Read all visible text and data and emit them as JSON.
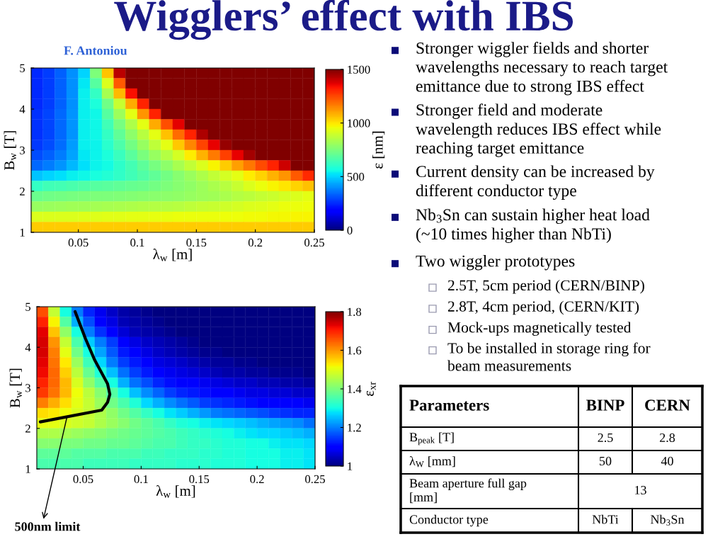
{
  "chart_data": [
    {
      "type": "heatmap",
      "xlabel": "λ$_{w}$ [m]",
      "ylabel": "B$_{w}$ [T]",
      "clabel": "ε [nm]",
      "cells": [
        [
          250,
          280,
          330,
          400,
          500,
          750,
          1050,
          1420,
          1500,
          1500,
          1500,
          1500,
          1500,
          1500,
          1500,
          1500,
          1500,
          1500,
          1500,
          1500,
          1500,
          1500,
          1500,
          1500
        ],
        [
          250,
          280,
          330,
          400,
          530,
          680,
          920,
          1220,
          1500,
          1500,
          1500,
          1500,
          1500,
          1500,
          1500,
          1500,
          1500,
          1500,
          1500,
          1500,
          1500,
          1500,
          1500,
          1500
        ],
        [
          250,
          280,
          330,
          400,
          540,
          620,
          830,
          1070,
          1340,
          1500,
          1500,
          1500,
          1500,
          1500,
          1500,
          1500,
          1500,
          1500,
          1500,
          1500,
          1500,
          1500,
          1500,
          1500
        ],
        [
          250,
          280,
          330,
          400,
          540,
          575,
          730,
          890,
          1090,
          1310,
          1500,
          1500,
          1500,
          1500,
          1500,
          1500,
          1500,
          1500,
          1500,
          1500,
          1500,
          1500,
          1500,
          1500
        ],
        [
          260,
          290,
          340,
          410,
          540,
          555,
          680,
          810,
          940,
          1125,
          1310,
          1500,
          1500,
          1500,
          1500,
          1500,
          1500,
          1500,
          1500,
          1500,
          1500,
          1500,
          1500,
          1500
        ],
        [
          260,
          290,
          340,
          410,
          540,
          555,
          640,
          740,
          840,
          940,
          1090,
          1240,
          1370,
          1500,
          1500,
          1500,
          1500,
          1500,
          1500,
          1500,
          1500,
          1500,
          1500,
          1500
        ],
        [
          260,
          290,
          340,
          410,
          540,
          555,
          620,
          700,
          780,
          860,
          940,
          1060,
          1190,
          1310,
          1440,
          1500,
          1500,
          1500,
          1500,
          1500,
          1500,
          1500,
          1500,
          1500
        ],
        [
          270,
          300,
          350,
          420,
          540,
          550,
          600,
          665,
          735,
          800,
          870,
          940,
          1045,
          1150,
          1255,
          1360,
          1470,
          1500,
          1500,
          1500,
          1500,
          1500,
          1500,
          1500
        ],
        [
          300,
          330,
          370,
          430,
          530,
          550,
          580,
          630,
          690,
          745,
          800,
          855,
          910,
          985,
          1080,
          1170,
          1265,
          1360,
          1450,
          1500,
          1500,
          1500,
          1500,
          1500
        ],
        [
          340,
          370,
          410,
          460,
          520,
          550,
          560,
          605,
          650,
          695,
          740,
          785,
          830,
          875,
          920,
          975,
          1040,
          1110,
          1175,
          1245,
          1310,
          1400,
          1500,
          1500
        ],
        [
          480,
          500,
          520,
          540,
          555,
          570,
          590,
          615,
          640,
          670,
          700,
          735,
          770,
          805,
          840,
          875,
          910,
          940,
          985,
          1030,
          1080,
          1125,
          1220,
          1300
        ],
        [
          620,
          640,
          650,
          660,
          670,
          680,
          690,
          700,
          710,
          720,
          735,
          750,
          770,
          790,
          810,
          835,
          860,
          890,
          920,
          950,
          975,
          1000,
          1030,
          1060
        ],
        [
          720,
          730,
          735,
          740,
          745,
          750,
          755,
          760,
          765,
          770,
          775,
          780,
          790,
          800,
          810,
          820,
          835,
          850,
          865,
          880,
          895,
          910,
          925,
          940
        ],
        [
          800,
          805,
          810,
          815,
          820,
          825,
          830,
          835,
          840,
          845,
          850,
          855,
          860,
          870,
          880,
          890,
          900,
          910,
          920,
          930,
          940,
          950,
          955,
          960
        ],
        [
          920,
          920,
          925,
          925,
          930,
          930,
          935,
          935,
          940,
          940,
          945,
          945,
          950,
          950,
          955,
          955,
          960,
          960,
          965,
          965,
          970,
          970,
          975,
          975
        ],
        [
          1040,
          1040,
          1040,
          1040,
          1040,
          1040,
          1040,
          1040,
          1040,
          1040,
          1040,
          1040,
          1040,
          1040,
          1040,
          1040,
          1040,
          1040,
          1040,
          1040,
          1040,
          1040,
          1040,
          1040
        ]
      ],
      "clim": [
        0,
        1500
      ],
      "cticks": [
        0,
        500,
        1000,
        1500
      ],
      "xlim": [
        0.01,
        0.25
      ],
      "xticks": [
        0.05,
        0.1,
        0.15,
        0.2,
        0.25
      ],
      "ylim": [
        1,
        5
      ],
      "yticks": [
        1,
        2,
        3,
        4,
        5
      ]
    },
    {
      "type": "heatmap",
      "xlabel": "λ$_{w}$ [m]",
      "ylabel": "B$_{w}$ [T]",
      "clabel": "ε$_{xr}$",
      "cells": [
        [
          1.66,
          1.47,
          1.3,
          1.2,
          1.13,
          1.08,
          1.05,
          1.03,
          1.02,
          1.01,
          1.0,
          1.0,
          1.0,
          1.0,
          1.0,
          1.0,
          1.0,
          1.0,
          1.0,
          1.0,
          1.0,
          1.0,
          1.0,
          1.0
        ],
        [
          1.7,
          1.52,
          1.36,
          1.24,
          1.16,
          1.1,
          1.07,
          1.04,
          1.03,
          1.02,
          1.01,
          1.0,
          1.0,
          1.0,
          1.0,
          1.0,
          1.0,
          1.0,
          1.0,
          1.0,
          1.0,
          1.0,
          1.0,
          1.0
        ],
        [
          1.73,
          1.56,
          1.42,
          1.3,
          1.2,
          1.14,
          1.09,
          1.06,
          1.04,
          1.03,
          1.02,
          1.01,
          1.0,
          1.0,
          1.0,
          1.0,
          1.0,
          1.0,
          1.0,
          1.0,
          1.0,
          1.0,
          1.0,
          1.0
        ],
        [
          1.74,
          1.6,
          1.47,
          1.35,
          1.26,
          1.2,
          1.15,
          1.1,
          1.07,
          1.05,
          1.04,
          1.03,
          1.02,
          1.01,
          1.0,
          1.0,
          1.0,
          1.0,
          1.0,
          1.0,
          1.0,
          1.0,
          1.0,
          1.0
        ],
        [
          1.74,
          1.62,
          1.5,
          1.39,
          1.3,
          1.23,
          1.17,
          1.12,
          1.09,
          1.07,
          1.05,
          1.04,
          1.03,
          1.02,
          1.01,
          1.01,
          1.0,
          1.0,
          1.0,
          1.0,
          1.0,
          1.0,
          1.0,
          1.0
        ],
        [
          1.73,
          1.63,
          1.53,
          1.43,
          1.34,
          1.27,
          1.2,
          1.15,
          1.12,
          1.09,
          1.07,
          1.06,
          1.05,
          1.04,
          1.03,
          1.02,
          1.02,
          1.01,
          1.01,
          1.0,
          1.0,
          1.0,
          1.0,
          1.0
        ],
        [
          1.72,
          1.64,
          1.55,
          1.46,
          1.38,
          1.31,
          1.25,
          1.19,
          1.15,
          1.12,
          1.1,
          1.08,
          1.07,
          1.06,
          1.05,
          1.04,
          1.03,
          1.03,
          1.02,
          1.02,
          1.01,
          1.01,
          1.01,
          1.0
        ],
        [
          1.7,
          1.64,
          1.57,
          1.49,
          1.42,
          1.36,
          1.3,
          1.24,
          1.19,
          1.16,
          1.13,
          1.11,
          1.1,
          1.09,
          1.08,
          1.07,
          1.06,
          1.05,
          1.05,
          1.04,
          1.04,
          1.03,
          1.03,
          1.02
        ],
        [
          1.68,
          1.63,
          1.57,
          1.51,
          1.46,
          1.41,
          1.36,
          1.3,
          1.25,
          1.21,
          1.18,
          1.15,
          1.13,
          1.12,
          1.11,
          1.1,
          1.09,
          1.08,
          1.07,
          1.07,
          1.06,
          1.06,
          1.05,
          1.05
        ],
        [
          1.62,
          1.58,
          1.54,
          1.5,
          1.47,
          1.43,
          1.39,
          1.35,
          1.31,
          1.27,
          1.24,
          1.21,
          1.19,
          1.17,
          1.15,
          1.14,
          1.13,
          1.12,
          1.11,
          1.1,
          1.1,
          1.09,
          1.09,
          1.08
        ],
        [
          1.54,
          1.53,
          1.51,
          1.49,
          1.47,
          1.45,
          1.42,
          1.39,
          1.36,
          1.33,
          1.3,
          1.28,
          1.26,
          1.24,
          1.22,
          1.2,
          1.19,
          1.18,
          1.17,
          1.16,
          1.15,
          1.14,
          1.13,
          1.13
        ],
        [
          1.5,
          1.5,
          1.49,
          1.48,
          1.47,
          1.45,
          1.43,
          1.41,
          1.39,
          1.37,
          1.35,
          1.33,
          1.31,
          1.3,
          1.29,
          1.28,
          1.27,
          1.26,
          1.25,
          1.24,
          1.23,
          1.22,
          1.21,
          1.19
        ],
        [
          1.45,
          1.45,
          1.44,
          1.43,
          1.42,
          1.41,
          1.4,
          1.39,
          1.38,
          1.37,
          1.36,
          1.35,
          1.34,
          1.33,
          1.32,
          1.31,
          1.3,
          1.29,
          1.28,
          1.27,
          1.27,
          1.26,
          1.25,
          1.24
        ],
        [
          1.41,
          1.41,
          1.4,
          1.4,
          1.39,
          1.39,
          1.38,
          1.38,
          1.37,
          1.36,
          1.35,
          1.35,
          1.34,
          1.33,
          1.33,
          1.32,
          1.31,
          1.31,
          1.3,
          1.3,
          1.29,
          1.28,
          1.28,
          1.27
        ],
        [
          1.37,
          1.37,
          1.37,
          1.36,
          1.36,
          1.36,
          1.35,
          1.35,
          1.35,
          1.34,
          1.34,
          1.33,
          1.33,
          1.33,
          1.32,
          1.32,
          1.31,
          1.31,
          1.3,
          1.3,
          1.3,
          1.29,
          1.29,
          1.28
        ],
        [
          1.35,
          1.35,
          1.35,
          1.35,
          1.34,
          1.34,
          1.34,
          1.34,
          1.33,
          1.33,
          1.33,
          1.33,
          1.32,
          1.32,
          1.32,
          1.31,
          1.31,
          1.31,
          1.3,
          1.3,
          1.3,
          1.29,
          1.29,
          1.28
        ]
      ],
      "clim": [
        1,
        1.8
      ],
      "cticks": [
        1,
        1.2,
        1.4,
        1.6,
        1.8
      ],
      "xlim": [
        0.01,
        0.25
      ],
      "xticks": [
        0.05,
        0.1,
        0.15,
        0.2,
        0.25
      ],
      "ylim": [
        1,
        5
      ],
      "yticks": [
        1,
        2,
        3,
        4,
        5
      ],
      "series": [
        {
          "type": "line",
          "color": "#000000",
          "x": [
            0.013,
            0.066,
            0.071,
            0.073,
            0.071,
            0.06,
            0.052,
            0.043
          ],
          "values": [
            2.16,
            2.45,
            2.64,
            2.84,
            3.1,
            3.68,
            4.21,
            4.88
          ]
        }
      ],
      "annotations": [
        {
          "text": "500nm limit",
          "x": 0.036,
          "y": 2.28
        }
      ]
    },
    {
      "type": "other",
      "title": "Wigglers’ effect with IBS",
      "subtitle": "F. Antoniou",
      "annotations": [
        "Stronger wiggler fields and shorter\nwavelengths necessary to reach target\nemittance due to strong IBS effect",
        "Stronger field and moderate\nwavelength reduces IBS effect while\nreaching target emittance",
        "Current density can be increased by\ndifferent conductor type",
        "Nb$_{3}$Sn can sustain higher heat load\n(~10 times higher than NbTi)",
        "Two wiggler prototypes"
      ]
    },
    {
      "type": "other",
      "annotations": [
        "2.5T, 5cm period (CERN/BINP)",
        "2.8T, 4cm period, (CERN/KIT)",
        "Mock-ups magnetically tested",
        "To be installed in storage ring for\nbeam measurements"
      ]
    },
    {
      "type": "other",
      "annotations": [
        "Parameters",
        "BINP",
        "CERN",
        "B$_{peak}$ [T]",
        "2.5",
        "2.8",
        "λ$_{W}$ [mm]",
        "50",
        "40",
        "Beam aperture full gap\n[mm]",
        "13",
        "Conductor type",
        "NbTi",
        "Nb$_{3}$Sn"
      ]
    }
  ]
}
